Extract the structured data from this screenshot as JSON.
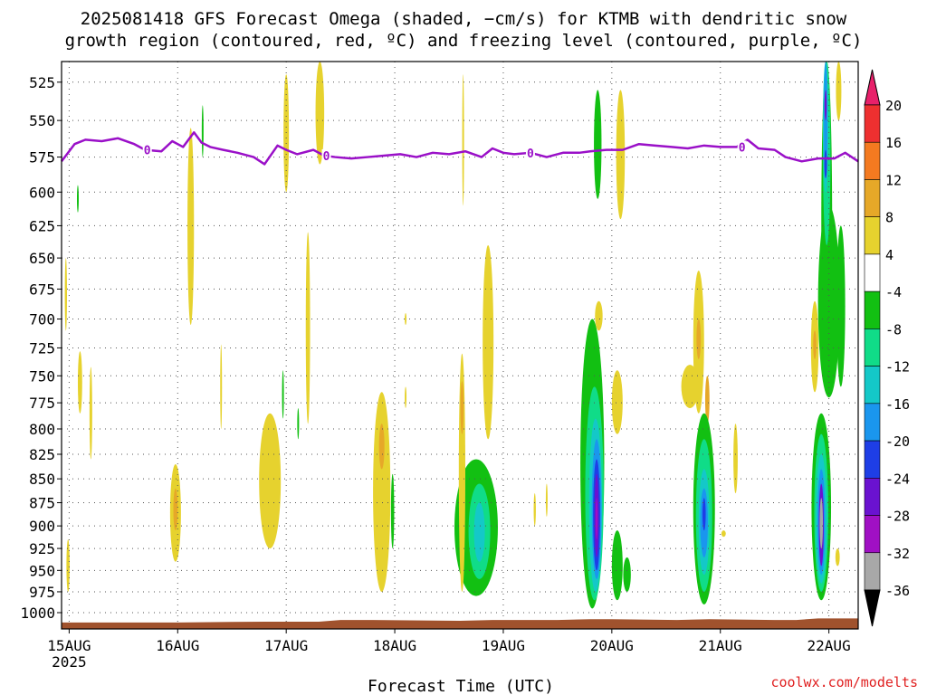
{
  "chart_data": {
    "type": "heatmap",
    "title_lines": [
      "2025081418 GFS Forecast Omega (shaded, −cm/s) for KTMB with dendritic snow",
      "growth region (contoured, red, ºC) and freezing level (contoured, purple, ºC)"
    ],
    "xlabel": "Forecast Time (UTC)",
    "ylabel": "",
    "credit": "coolwx.com/modelts",
    "x_ticks": [
      "15AUG",
      "16AUG",
      "17AUG",
      "18AUG",
      "19AUG",
      "20AUG",
      "21AUG",
      "22AUG"
    ],
    "x_year": "2025",
    "xlim": [
      14.93,
      22.27
    ],
    "y_ticks": [
      525,
      550,
      575,
      600,
      625,
      650,
      675,
      700,
      725,
      750,
      775,
      800,
      825,
      850,
      875,
      900,
      925,
      950,
      975,
      1000
    ],
    "ylim_hpa": [
      1020,
      512
    ],
    "y_axis_scale": "log-pressure",
    "grid": true,
    "colorbar": {
      "ticks": [
        "20",
        "16",
        "12",
        "8",
        "4",
        "-4",
        "-8",
        "-12",
        "-16",
        "-20",
        "-24",
        "-28",
        "-32",
        "-36"
      ],
      "colors": [
        "#e8206a",
        "#ee3030",
        "#f47a20",
        "#e6a828",
        "#e6d22e",
        "#ffffff",
        "#12c012",
        "#10dc88",
        "#14c8c8",
        "#1a96ee",
        "#1e3ee6",
        "#6a12d0",
        "#a010c4",
        "#a8a8a8",
        "#000000"
      ]
    },
    "freezing_level": {
      "label": "0",
      "color": "#9a10c8",
      "x": [
        14.93,
        15.05,
        15.15,
        15.3,
        15.45,
        15.6,
        15.7,
        15.85,
        15.95,
        16.05,
        16.15,
        16.22,
        16.3,
        16.42,
        16.55,
        16.7,
        16.8,
        16.92,
        17.0,
        17.1,
        17.25,
        17.35,
        17.45,
        17.6,
        17.75,
        17.9,
        18.05,
        18.2,
        18.35,
        18.5,
        18.65,
        18.8,
        18.9,
        19.0,
        19.1,
        19.25,
        19.4,
        19.55,
        19.7,
        19.8,
        19.95,
        20.1,
        20.25,
        20.4,
        20.55,
        20.7,
        20.85,
        21.0,
        21.15,
        21.25,
        21.35,
        21.5,
        21.6,
        21.75,
        21.9,
        22.05,
        22.15,
        22.27
      ],
      "hpa": [
        578,
        566,
        563,
        564,
        562,
        566,
        570,
        571,
        564,
        568,
        558,
        565,
        568,
        570,
        572,
        575,
        580,
        567,
        570,
        573,
        570,
        574,
        575,
        576,
        575,
        574,
        573,
        575,
        572,
        573,
        571,
        575,
        569,
        572,
        573,
        572,
        575,
        572,
        572,
        571,
        570,
        570,
        566,
        567,
        568,
        569,
        567,
        568,
        568,
        563,
        569,
        570,
        575,
        578,
        576,
        576,
        572,
        578
      ]
    },
    "omega_legend_note": "shading values in -cm/s",
    "shaded_regions": [
      {
        "color": "#e6d22e",
        "x": 14.97,
        "hpa": [
          650,
          710
        ],
        "w": 0.02
      },
      {
        "color": "#e6d22e",
        "x": 15.1,
        "hpa": [
          728,
          785
        ],
        "w": 0.04
      },
      {
        "color": "#e6d22e",
        "x": 15.2,
        "hpa": [
          742,
          830
        ],
        "w": 0.025
      },
      {
        "color": "#e6d22e",
        "x": 14.99,
        "hpa": [
          915,
          975
        ],
        "w": 0.03
      },
      {
        "color": "#12c012",
        "x": 15.08,
        "hpa": [
          595,
          615
        ],
        "w": 0.015
      },
      {
        "color": "#e6d22e",
        "x": 15.98,
        "hpa": [
          835,
          940
        ],
        "w": 0.1
      },
      {
        "color": "#e6a828",
        "x": 15.98,
        "hpa": [
          860,
          905
        ],
        "w": 0.04
      },
      {
        "color": "#e6d22e",
        "x": 16.12,
        "hpa": [
          555,
          705
        ],
        "w": 0.06
      },
      {
        "color": "#12c012",
        "x": 16.23,
        "hpa": [
          540,
          575
        ],
        "w": 0.015
      },
      {
        "color": "#e6d22e",
        "x": 16.4,
        "hpa": [
          722,
          800
        ],
        "w": 0.015
      },
      {
        "color": "#e6d22e",
        "x": 16.85,
        "hpa": [
          785,
          925
        ],
        "w": 0.2
      },
      {
        "color": "#e6d22e",
        "x": 17.0,
        "hpa": [
          520,
          600
        ],
        "w": 0.05
      },
      {
        "color": "#12c012",
        "x": 16.97,
        "hpa": [
          745,
          790
        ],
        "w": 0.015
      },
      {
        "color": "#12c012",
        "x": 17.11,
        "hpa": [
          780,
          810
        ],
        "w": 0.015
      },
      {
        "color": "#e6d22e",
        "x": 17.2,
        "hpa": [
          630,
          795
        ],
        "w": 0.04
      },
      {
        "color": "#e6d22e",
        "x": 17.31,
        "hpa": [
          512,
          580
        ],
        "w": 0.08
      },
      {
        "color": "#e6d22e",
        "x": 17.88,
        "hpa": [
          765,
          975
        ],
        "w": 0.16
      },
      {
        "color": "#e6a828",
        "x": 17.88,
        "hpa": [
          795,
          840
        ],
        "w": 0.05
      },
      {
        "color": "#12c012",
        "x": 17.98,
        "hpa": [
          845,
          925
        ],
        "w": 0.03
      },
      {
        "color": "#e6d22e",
        "x": 18.1,
        "hpa": [
          695,
          705
        ],
        "w": 0.015
      },
      {
        "color": "#e6d22e",
        "x": 18.1,
        "hpa": [
          760,
          780
        ],
        "w": 0.015
      },
      {
        "color": "#12c012",
        "x": 18.75,
        "hpa": [
          830,
          980
        ],
        "w": 0.4
      },
      {
        "color": "#10dc88",
        "x": 18.78,
        "hpa": [
          855,
          960
        ],
        "w": 0.2
      },
      {
        "color": "#14c8c8",
        "x": 18.78,
        "hpa": [
          875,
          940
        ],
        "w": 0.1
      },
      {
        "color": "#e6d22e",
        "x": 18.62,
        "hpa": [
          730,
          975
        ],
        "w": 0.06
      },
      {
        "color": "#e6a828",
        "x": 18.62,
        "hpa": [
          755,
          805
        ],
        "w": 0.03
      },
      {
        "color": "#e6d22e",
        "x": 18.86,
        "hpa": [
          640,
          810
        ],
        "w": 0.1
      },
      {
        "color": "#e6d22e",
        "x": 18.63,
        "hpa": [
          520,
          610
        ],
        "w": 0.015
      },
      {
        "color": "#e6d22e",
        "x": 19.29,
        "hpa": [
          865,
          900
        ],
        "w": 0.02
      },
      {
        "color": "#e6d22e",
        "x": 19.4,
        "hpa": [
          855,
          890
        ],
        "w": 0.015
      },
      {
        "color": "#12c012",
        "x": 19.82,
        "hpa": [
          700,
          995
        ],
        "w": 0.22
      },
      {
        "color": "#10dc88",
        "x": 19.84,
        "hpa": [
          760,
          985
        ],
        "w": 0.17
      },
      {
        "color": "#14c8c8",
        "x": 19.85,
        "hpa": [
          790,
          975
        ],
        "w": 0.12
      },
      {
        "color": "#1a96ee",
        "x": 19.86,
        "hpa": [
          810,
          960
        ],
        "w": 0.09
      },
      {
        "color": "#1e3ee6",
        "x": 19.86,
        "hpa": [
          830,
          950
        ],
        "w": 0.065
      },
      {
        "color": "#6a12d0",
        "x": 19.86,
        "hpa": [
          845,
          935
        ],
        "w": 0.04
      },
      {
        "color": "#a010c4",
        "x": 19.86,
        "hpa": [
          870,
          915
        ],
        "w": 0.02
      },
      {
        "color": "#12c012",
        "x": 19.87,
        "hpa": [
          530,
          605
        ],
        "w": 0.07
      },
      {
        "color": "#e6d22e",
        "x": 19.88,
        "hpa": [
          685,
          710
        ],
        "w": 0.07
      },
      {
        "color": "#e6d22e",
        "x": 20.05,
        "hpa": [
          745,
          805
        ],
        "w": 0.1
      },
      {
        "color": "#e6d22e",
        "x": 20.08,
        "hpa": [
          530,
          620
        ],
        "w": 0.08
      },
      {
        "color": "#12c012",
        "x": 20.05,
        "hpa": [
          905,
          985
        ],
        "w": 0.1
      },
      {
        "color": "#12c012",
        "x": 20.14,
        "hpa": [
          935,
          975
        ],
        "w": 0.07
      },
      {
        "color": "#e6d22e",
        "x": 20.8,
        "hpa": [
          660,
          785
        ],
        "w": 0.1
      },
      {
        "color": "#e6d22e",
        "x": 20.72,
        "hpa": [
          740,
          780
        ],
        "w": 0.16
      },
      {
        "color": "#e6a828",
        "x": 20.8,
        "hpa": [
          700,
          735
        ],
        "w": 0.04
      },
      {
        "color": "#e6a828",
        "x": 20.88,
        "hpa": [
          750,
          795
        ],
        "w": 0.04
      },
      {
        "color": "#12c012",
        "x": 20.85,
        "hpa": [
          785,
          990
        ],
        "w": 0.2
      },
      {
        "color": "#10dc88",
        "x": 20.85,
        "hpa": [
          810,
          975
        ],
        "w": 0.15
      },
      {
        "color": "#14c8c8",
        "x": 20.85,
        "hpa": [
          840,
          955
        ],
        "w": 0.1
      },
      {
        "color": "#1a96ee",
        "x": 20.85,
        "hpa": [
          860,
          935
        ],
        "w": 0.07
      },
      {
        "color": "#1e3ee6",
        "x": 20.85,
        "hpa": [
          870,
          905
        ],
        "w": 0.03
      },
      {
        "color": "#e6d22e",
        "x": 21.14,
        "hpa": [
          795,
          865
        ],
        "w": 0.04
      },
      {
        "color": "#e6d22e",
        "x": 21.03,
        "hpa": [
          905,
          912
        ],
        "w": 0.04
      },
      {
        "color": "#e6d22e",
        "x": 21.87,
        "hpa": [
          685,
          765
        ],
        "w": 0.07
      },
      {
        "color": "#e6a828",
        "x": 21.87,
        "hpa": [
          710,
          735
        ],
        "w": 0.03
      },
      {
        "color": "#12c012",
        "x": 22.0,
        "hpa": [
          610,
          770
        ],
        "w": 0.2
      },
      {
        "color": "#12c012",
        "x": 21.93,
        "hpa": [
          785,
          985
        ],
        "w": 0.18
      },
      {
        "color": "#10dc88",
        "x": 21.93,
        "hpa": [
          805,
          975
        ],
        "w": 0.13
      },
      {
        "color": "#14c8c8",
        "x": 21.93,
        "hpa": [
          825,
          965
        ],
        "w": 0.1
      },
      {
        "color": "#1a96ee",
        "x": 21.93,
        "hpa": [
          840,
          955
        ],
        "w": 0.07
      },
      {
        "color": "#6a12d0",
        "x": 21.93,
        "hpa": [
          855,
          945
        ],
        "w": 0.045
      },
      {
        "color": "#a8a8a8",
        "x": 21.93,
        "hpa": [
          870,
          925
        ],
        "w": 0.03
      },
      {
        "color": "#12c012",
        "x": 21.98,
        "hpa": [
          512,
          760
        ],
        "w": 0.1
      },
      {
        "color": "#10dc88",
        "x": 21.98,
        "hpa": [
          512,
          640
        ],
        "w": 0.07
      },
      {
        "color": "#14c8c8",
        "x": 21.97,
        "hpa": [
          512,
          600
        ],
        "w": 0.05
      },
      {
        "color": "#1a96ee",
        "x": 21.97,
        "hpa": [
          512,
          590
        ],
        "w": 0.03
      },
      {
        "color": "#1e3ee6",
        "x": 21.97,
        "hpa": [
          570,
          590
        ],
        "w": 0.025
      },
      {
        "color": "#6a12d0",
        "x": 21.97,
        "hpa": [
          530,
          550
        ],
        "w": 0.02
      },
      {
        "color": "#e6d22e",
        "x": 22.09,
        "hpa": [
          512,
          550
        ],
        "w": 0.05
      },
      {
        "color": "#12c012",
        "x": 22.11,
        "hpa": [
          625,
          760
        ],
        "w": 0.08
      },
      {
        "color": "#e6d22e",
        "x": 22.08,
        "hpa": [
          925,
          945
        ],
        "w": 0.04
      }
    ],
    "terrain": {
      "color": "#a0522d",
      "x": [
        14.93,
        16.0,
        16.8,
        17.3,
        17.5,
        17.8,
        18.6,
        18.9,
        19.5,
        19.8,
        20.0,
        20.6,
        20.9,
        21.5,
        21.7,
        21.9,
        22.27
      ],
      "hpa": [
        1012,
        1012,
        1011,
        1011,
        1009,
        1009,
        1010,
        1009,
        1009,
        1008,
        1008,
        1009,
        1008,
        1009,
        1009,
        1007,
        1007
      ]
    }
  }
}
